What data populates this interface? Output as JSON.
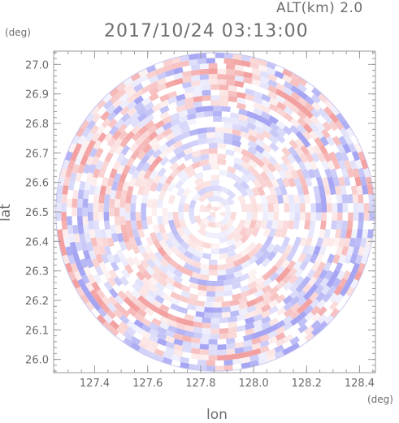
{
  "header": {
    "altitude_label": "ALT(km) 2.0",
    "timestamp": "2017/10/24 03:13:00"
  },
  "chart_data": {
    "type": "heatmap",
    "title": "2017/10/24 03:13:00",
    "subtitle": "ALT(km) 2.0",
    "xlabel": "lon",
    "ylabel": "lat",
    "x_unit": "(deg)",
    "y_unit": "(deg)",
    "xlim": [
      127.245,
      128.46
    ],
    "ylim": [
      25.955,
      27.045
    ],
    "x_ticks": [
      "127.4",
      "127.6",
      "127.8",
      "128.0",
      "128.2",
      "128.4"
    ],
    "y_ticks": [
      "26.0",
      "26.1",
      "26.2",
      "26.3",
      "26.4",
      "26.5",
      "26.6",
      "26.7",
      "26.8",
      "26.9",
      "27.0"
    ],
    "x_tick_values": [
      127.4,
      127.6,
      127.8,
      128.0,
      128.2,
      128.4
    ],
    "y_tick_values": [
      26.0,
      26.1,
      26.2,
      26.3,
      26.4,
      26.5,
      26.6,
      26.7,
      26.8,
      26.9,
      27.0
    ],
    "center": [
      127.855,
      26.5
    ],
    "radius_lat_deg": 0.54,
    "colors": {
      "positive": "#f4a3a3",
      "negative": "#a9a9f2",
      "neutral": "#ffffff",
      "frame": "#9a9a9a"
    },
    "grid": false
  }
}
